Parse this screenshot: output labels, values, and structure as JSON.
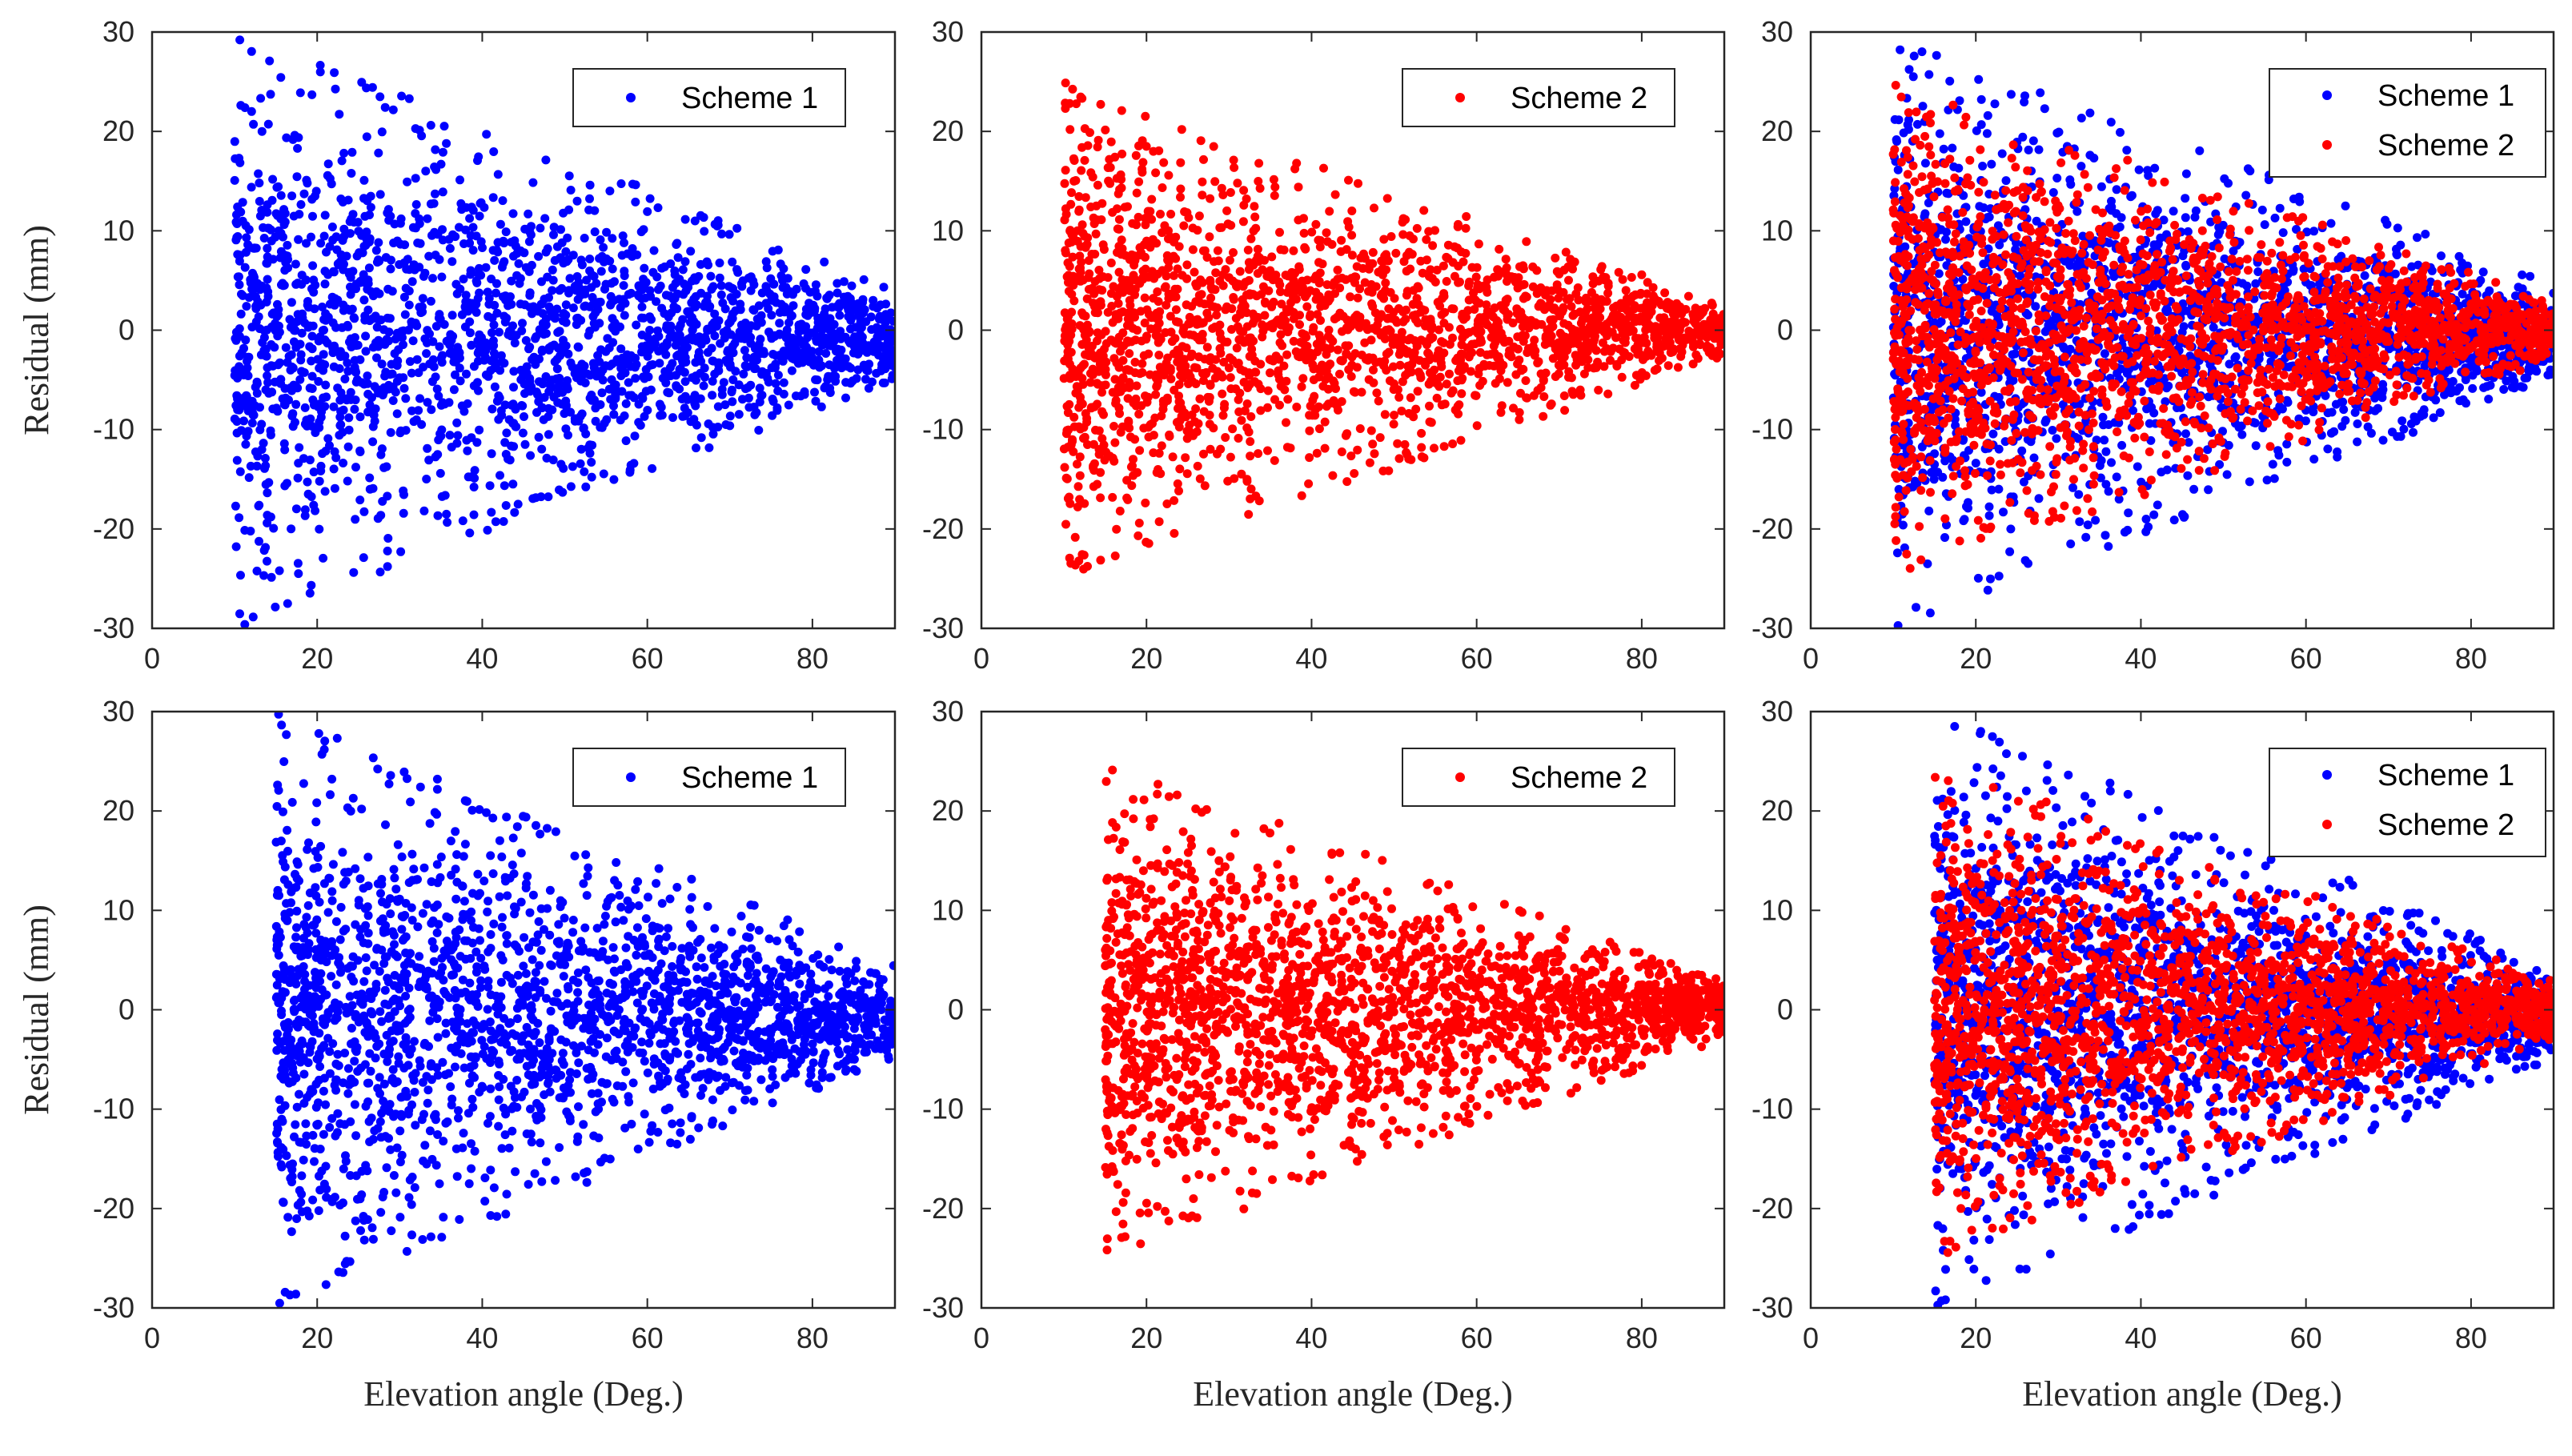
{
  "figure": {
    "ylabel": "Residual (mm)",
    "xlabel": "Elevation angle (Deg.)"
  },
  "colors": {
    "scheme1": "#0000ff",
    "scheme2": "#ff0000"
  },
  "chart_data": [
    {
      "type": "scatter",
      "row": 1,
      "col": 1,
      "xlim": [
        0,
        90
      ],
      "ylim": [
        -30,
        30
      ],
      "xticks": [
        "0",
        "20",
        "40",
        "60",
        "80"
      ],
      "yticks": [
        "-30",
        "-20",
        "-10",
        "0",
        "10",
        "20",
        "30"
      ],
      "xlabel": "",
      "ylabel": "Residual (mm)",
      "legend_position": "top-right",
      "series": [
        {
          "name": "Scheme 1",
          "color": "#0000ff",
          "x_min": 10,
          "x_max": 90,
          "y_env_low_x": 30,
          "y_env_high_x": 5,
          "y_mean": -1
        }
      ]
    },
    {
      "type": "scatter",
      "row": 1,
      "col": 2,
      "xlim": [
        0,
        90
      ],
      "ylim": [
        -30,
        30
      ],
      "xticks": [
        "0",
        "20",
        "40",
        "60",
        "80"
      ],
      "yticks": [
        "-30",
        "-20",
        "-10",
        "0",
        "10",
        "20",
        "30"
      ],
      "xlabel": "",
      "ylabel": "",
      "legend_position": "top-right",
      "series": [
        {
          "name": "Scheme 2",
          "color": "#ff0000",
          "x_min": 10,
          "x_max": 90,
          "y_env_low_x": 25,
          "y_env_high_x": 3,
          "y_mean": 0
        }
      ]
    },
    {
      "type": "scatter",
      "row": 1,
      "col": 3,
      "xlim": [
        0,
        90
      ],
      "ylim": [
        -30,
        30
      ],
      "xticks": [
        "0",
        "20",
        "40",
        "60",
        "80"
      ],
      "yticks": [
        "-30",
        "-20",
        "-10",
        "0",
        "10",
        "20",
        "30"
      ],
      "xlabel": "",
      "ylabel": "",
      "legend_position": "top-right",
      "series": [
        {
          "name": "Scheme 1",
          "color": "#0000ff",
          "x_min": 10,
          "x_max": 90,
          "y_env_low_x": 30,
          "y_env_high_x": 5,
          "y_mean": -1
        },
        {
          "name": "Scheme 2",
          "color": "#ff0000",
          "x_min": 10,
          "x_max": 90,
          "y_env_low_x": 25,
          "y_env_high_x": 3,
          "y_mean": 0
        }
      ]
    },
    {
      "type": "scatter",
      "row": 2,
      "col": 1,
      "xlim": [
        0,
        90
      ],
      "ylim": [
        -30,
        30
      ],
      "xticks": [
        "0",
        "20",
        "40",
        "60",
        "80"
      ],
      "yticks": [
        "-30",
        "-20",
        "-10",
        "0",
        "10",
        "20",
        "30"
      ],
      "xlabel": "Elevation angle (Deg.)",
      "ylabel": "Residual (mm)",
      "legend_position": "top-right",
      "series": [
        {
          "name": "Scheme 1",
          "color": "#0000ff",
          "x_min": 15,
          "x_max": 90,
          "y_env_low_x": 30,
          "y_env_high_x": 5,
          "y_mean": -1
        }
      ]
    },
    {
      "type": "scatter",
      "row": 2,
      "col": 2,
      "xlim": [
        0,
        90
      ],
      "ylim": [
        -30,
        30
      ],
      "xticks": [
        "0",
        "20",
        "40",
        "60",
        "80"
      ],
      "yticks": [
        "-30",
        "-20",
        "-10",
        "0",
        "10",
        "20",
        "30"
      ],
      "xlabel": "Elevation angle (Deg.)",
      "ylabel": "",
      "legend_position": "top-right",
      "series": [
        {
          "name": "Scheme 2",
          "color": "#ff0000",
          "x_min": 15,
          "x_max": 90,
          "y_env_low_x": 25,
          "y_env_high_x": 3,
          "y_mean": 0
        }
      ]
    },
    {
      "type": "scatter",
      "row": 2,
      "col": 3,
      "xlim": [
        0,
        90
      ],
      "ylim": [
        -30,
        30
      ],
      "xticks": [
        "0",
        "20",
        "40",
        "60",
        "80"
      ],
      "yticks": [
        "-30",
        "-20",
        "-10",
        "0",
        "10",
        "20",
        "30"
      ],
      "xlabel": "Elevation angle (Deg.)",
      "ylabel": "",
      "legend_position": "top-right",
      "series": [
        {
          "name": "Scheme 1",
          "color": "#0000ff",
          "x_min": 15,
          "x_max": 90,
          "y_env_low_x": 30,
          "y_env_high_x": 5,
          "y_mean": -1
        },
        {
          "name": "Scheme 2",
          "color": "#ff0000",
          "x_min": 15,
          "x_max": 90,
          "y_env_low_x": 25,
          "y_env_high_x": 3,
          "y_mean": 0
        }
      ]
    }
  ]
}
